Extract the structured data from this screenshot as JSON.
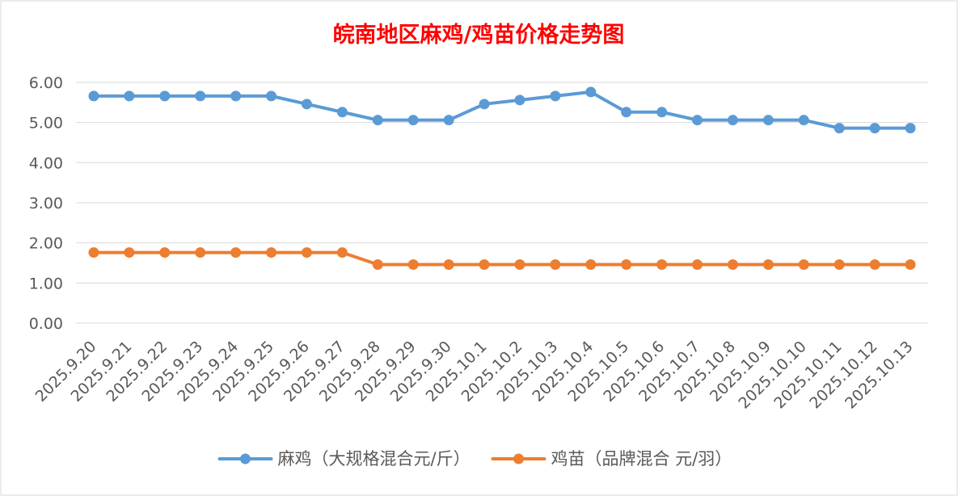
{
  "chart_data": {
    "type": "line",
    "title": "皖南地区麻鸡/鸡苗价格走势图",
    "xlabel": "",
    "ylabel": "",
    "ylim": [
      0,
      6
    ],
    "y_ticks": [
      "0.00",
      "1.00",
      "2.00",
      "3.00",
      "4.00",
      "5.00",
      "6.00"
    ],
    "grid": true,
    "legend_position": "bottom",
    "categories": [
      "2025.9.20",
      "2025.9.21",
      "2025.9.22",
      "2025.9.23",
      "2025.9.24",
      "2025.9.25",
      "2025.9.26",
      "2025.9.27",
      "2025.9.28",
      "2025.9.29",
      "2025.9.30",
      "2025.10.1",
      "2025.10.2",
      "2025.10.3",
      "2025.10.4",
      "2025.10.5",
      "2025.10.6",
      "2025.10.7",
      "2025.10.8",
      "2025.10.9",
      "2025.10.10",
      "2025.10.11",
      "2025.10.12",
      "2025.10.13"
    ],
    "series": [
      {
        "name": "麻鸡（大规格混合元/斤）",
        "color": "#5b9bd5",
        "values": [
          5.66,
          5.66,
          5.66,
          5.66,
          5.66,
          5.66,
          5.46,
          5.26,
          5.06,
          5.06,
          5.06,
          5.46,
          5.56,
          5.66,
          5.76,
          5.26,
          5.26,
          5.06,
          5.06,
          5.06,
          5.06,
          4.86,
          4.86,
          4.86
        ]
      },
      {
        "name": "鸡苗（品牌混合 元/羽）",
        "color": "#ed7d31",
        "values": [
          1.76,
          1.76,
          1.76,
          1.76,
          1.76,
          1.76,
          1.76,
          1.76,
          1.46,
          1.46,
          1.46,
          1.46,
          1.46,
          1.46,
          1.46,
          1.46,
          1.46,
          1.46,
          1.46,
          1.46,
          1.46,
          1.46,
          1.46,
          1.46
        ]
      }
    ]
  }
}
